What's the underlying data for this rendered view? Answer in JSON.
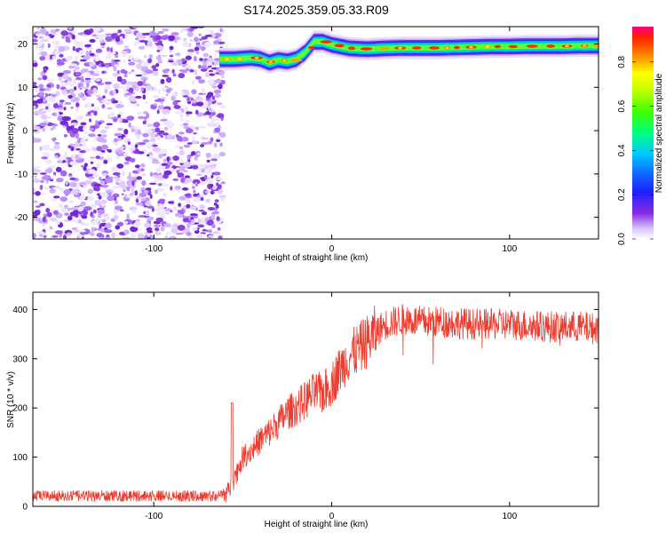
{
  "figure": {
    "title": "S174.2025.359.05.33.R09"
  },
  "chart_data": [
    {
      "type": "heatmap",
      "xlabel": "Height of straight line (km)",
      "ylabel": "Frequency (Hz)",
      "xlim": [
        -168,
        150
      ],
      "ylim": [
        -25,
        24
      ],
      "xticks": [
        -100,
        0,
        100
      ],
      "yticks": [
        -20,
        -10,
        0,
        10,
        20
      ],
      "noise_region_x": [
        -168,
        -63
      ],
      "signal_start_x": -63,
      "ridge": {
        "x": [
          -63,
          -55,
          -45,
          -40,
          -35,
          -30,
          -25,
          -20,
          -15,
          -10,
          -5,
          0,
          10,
          20,
          30,
          40,
          50,
          60,
          70,
          80,
          90,
          100,
          110,
          120,
          130,
          140,
          150
        ],
        "y": [
          16.5,
          16.5,
          16.8,
          16.5,
          15.7,
          16.3,
          16.0,
          16.5,
          18.0,
          20.5,
          20.5,
          19.8,
          19.0,
          18.8,
          19.0,
          19.1,
          19.1,
          19.1,
          19.2,
          19.3,
          19.4,
          19.4,
          19.5,
          19.5,
          19.5,
          19.6,
          19.6
        ]
      },
      "colorbar": {
        "label": "Normalized spectral amplitude",
        "range": [
          0.0,
          0.96
        ],
        "ticks": [
          0.0,
          0.2,
          0.4,
          0.6,
          0.8
        ]
      }
    },
    {
      "type": "line",
      "xlabel": "Height of straight line (km)",
      "ylabel": "SNR (10 * v/v)",
      "xlim": [
        -168,
        150
      ],
      "ylim": [
        0,
        435
      ],
      "xticks": [
        -100,
        0,
        100
      ],
      "yticks": [
        0,
        100,
        200,
        300,
        400
      ],
      "color": "#ee3b2e",
      "envelope": {
        "x": [
          -168,
          -63,
          -58,
          -55,
          -50,
          -45,
          -40,
          -35,
          -30,
          -25,
          -20,
          -15,
          -10,
          -5,
          0,
          5,
          10,
          15,
          20,
          25,
          30,
          40,
          50,
          60,
          80,
          100,
          120,
          140,
          150
        ],
        "y": [
          20,
          20,
          30,
          55,
          100,
          115,
          135,
          150,
          170,
          190,
          200,
          215,
          230,
          230,
          250,
          280,
          305,
          320,
          335,
          355,
          370,
          380,
          375,
          375,
          370,
          370,
          365,
          365,
          360
        ]
      }
    }
  ]
}
